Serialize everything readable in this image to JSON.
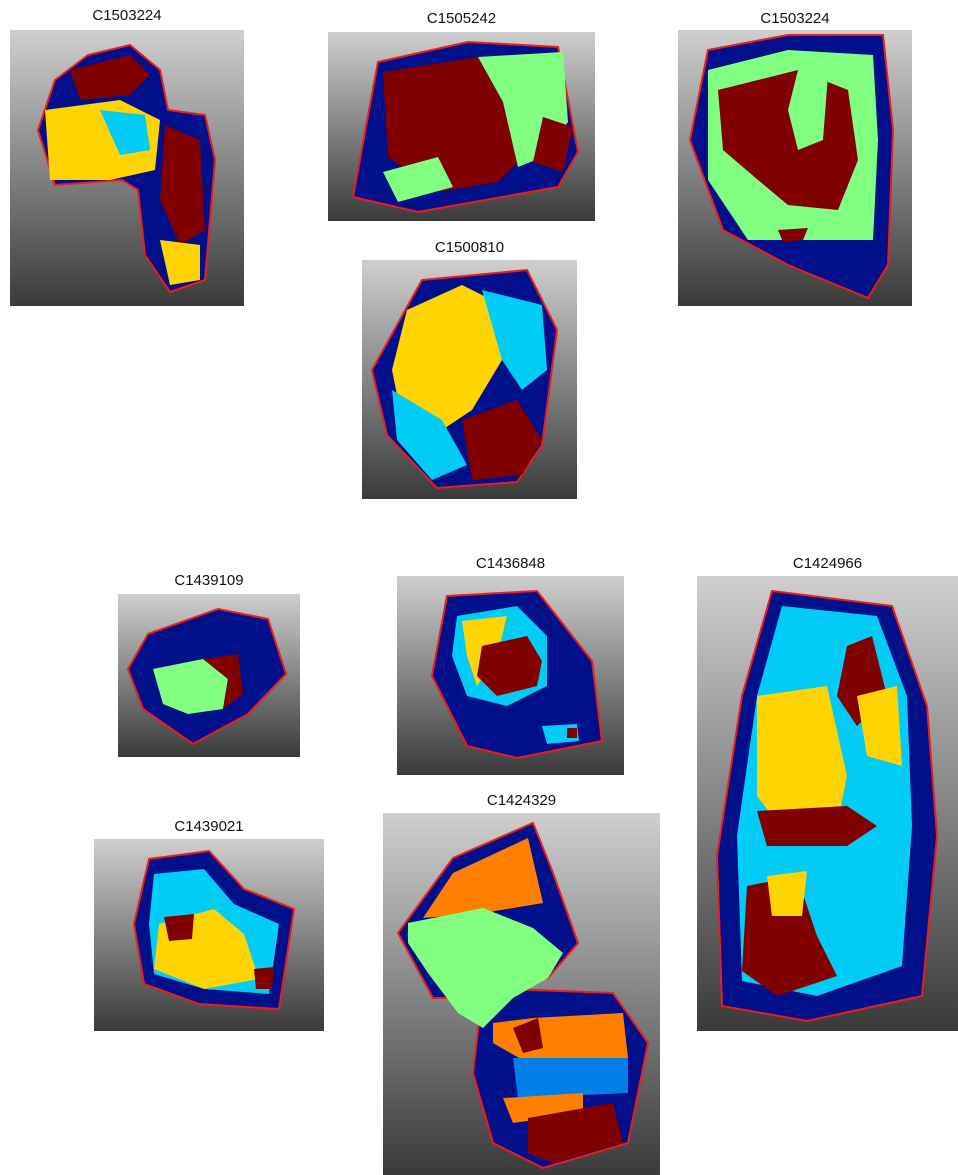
{
  "figure": {
    "colors": {
      "outer_region": "#000f8a",
      "boundary_line": "#ee1b1b",
      "dark_red": "#800000",
      "light_green": "#80ff80",
      "yellow": "#ffd400",
      "cyan": "#00ccf5",
      "orange": "#ff8000",
      "blue": "#0080e6",
      "background_top": "#cfcfcf",
      "background_bottom": "#3a3a3a"
    },
    "panels": [
      {
        "label": "C1503224"
      },
      {
        "label": "C1505242"
      },
      {
        "label": "C1503224"
      },
      {
        "label": "C1500810"
      },
      {
        "label": "C1439109"
      },
      {
        "label": "C1436848"
      },
      {
        "label": "C1424966"
      },
      {
        "label": "C1439021"
      },
      {
        "label": "C1424329"
      }
    ]
  }
}
